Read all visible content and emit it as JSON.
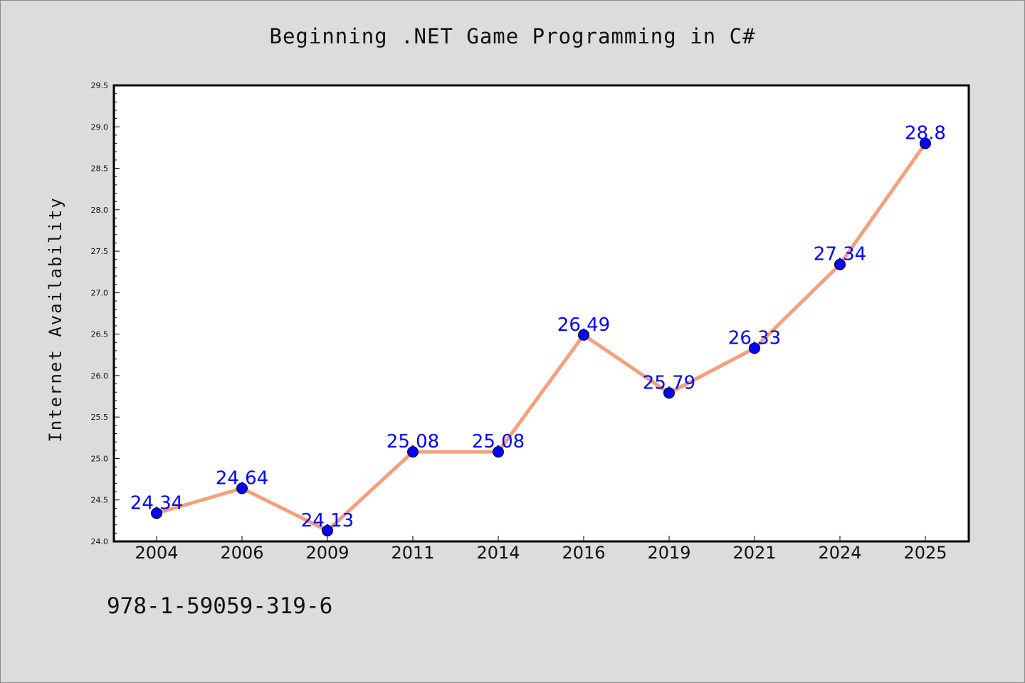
{
  "chart_data": {
    "type": "line",
    "title": "Beginning .NET Game Programming in C#",
    "xlabel": "",
    "ylabel": "Internet Availability",
    "categories": [
      "2004",
      "2006",
      "2009",
      "2011",
      "2014",
      "2016",
      "2019",
      "2021",
      "2024",
      "2025"
    ],
    "values": [
      24.34,
      24.64,
      24.13,
      25.08,
      25.08,
      26.49,
      25.79,
      26.33,
      27.34,
      28.8
    ],
    "data_labels": [
      "24.34",
      "24.64",
      "24.13",
      "25.08",
      "25.08",
      "26.49",
      "25.79",
      "26.33",
      "27.34",
      "28.8"
    ],
    "ylim": [
      24.0,
      29.5
    ],
    "yticks": [
      "24.0",
      "24.5",
      "25.0",
      "25.5",
      "26.0",
      "26.5",
      "27.0",
      "27.5",
      "28.0",
      "28.5",
      "29.0",
      "29.5"
    ],
    "grid": false,
    "legend": "none",
    "colors": {
      "line": "#f4a07c",
      "marker": "#0000ff",
      "data_label": "#0000ff",
      "plot_background": "#ffffff",
      "figure_background": "#dcdcdc"
    }
  },
  "footnote": "978-1-59059-319-6"
}
